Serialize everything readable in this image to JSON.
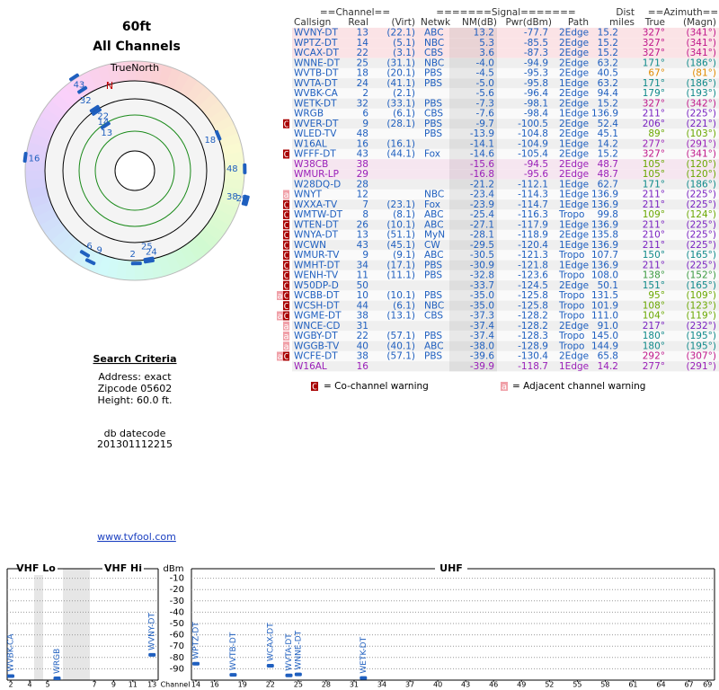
{
  "header": {
    "height_title": "60ft",
    "subtitle": "All Channels"
  },
  "polar": {
    "north_label": "TrueNorth",
    "north_mark": "N",
    "marker_color": "#1f5fbf",
    "markers": [
      {
        "label": "13",
        "az": 327,
        "nm": 13.2
      },
      {
        "label": "14",
        "az": 327,
        "nm": 5.3
      },
      {
        "label": "22",
        "az": 327,
        "nm": 3.6
      },
      {
        "label": "32",
        "az": 327,
        "nm": -7.3
      },
      {
        "label": "43",
        "az": 327,
        "nm": -14.6
      },
      {
        "label": "18",
        "az": 67,
        "nm": -4.5
      },
      {
        "label": "48",
        "az": 89,
        "nm": -13.9
      },
      {
        "label": "38",
        "az": 105,
        "nm": -15.6
      },
      {
        "label": "29",
        "az": 105,
        "nm": -16.8
      },
      {
        "label": "16",
        "az": 277,
        "nm": -14.1
      },
      {
        "label": "6",
        "az": 211,
        "nm": -7.6
      },
      {
        "label": "9",
        "az": 206,
        "nm": -9.7
      },
      {
        "label": "2",
        "az": 179,
        "nm": -5.6
      },
      {
        "label": "25",
        "az": 171,
        "nm": -4.0
      },
      {
        "label": "24",
        "az": 171,
        "nm": -5.0
      }
    ]
  },
  "criteria": {
    "title": "Search Criteria",
    "address": "Address: exact",
    "zipcode": "Zipcode 05602",
    "height": "Height: 60.0 ft.",
    "datecode_label": "db datecode",
    "datecode": "201301112215",
    "link": "www.tvfool.com"
  },
  "table": {
    "headers": {
      "channel": "==Channel==",
      "signal": "=======Signal=======",
      "dist": "Dist",
      "azimuth": "==Azimuth==",
      "callsign": "Callsign",
      "real": "Real",
      "virt": "(Virt)",
      "netwk": "Netwk",
      "nm": "NM(dB)",
      "pwr": "Pwr(dBm)",
      "path": "Path",
      "miles": "miles",
      "az_true": "True",
      "az_magn": "(Magn)"
    },
    "rows": [
      {
        "callsign": "WVNY-DT",
        "real": "13",
        "virt": "(22.1)",
        "netwk": "ABC",
        "nm": "13.2",
        "pwr": "-77.7",
        "path": "2Edge",
        "dist": "15.2",
        "az_true": "327°",
        "az_magn": "(341°)",
        "color": "#1f5fbf",
        "az_color": "#c0168a",
        "bg": "#fbe3e6"
      },
      {
        "callsign": "WPTZ-DT",
        "real": "14",
        "virt": "(5.1)",
        "netwk": "NBC",
        "nm": "5.3",
        "pwr": "-85.5",
        "path": "2Edge",
        "dist": "15.2",
        "az_true": "327°",
        "az_magn": "(341°)",
        "color": "#1f5fbf",
        "az_color": "#c0168a",
        "bg": "#fbe3e6"
      },
      {
        "callsign": "WCAX-DT",
        "real": "22",
        "virt": "(3.1)",
        "netwk": "CBS",
        "nm": "3.6",
        "pwr": "-87.3",
        "path": "2Edge",
        "dist": "15.2",
        "az_true": "327°",
        "az_magn": "(341°)",
        "color": "#1f5fbf",
        "az_color": "#c0168a",
        "bg": "#fbe3e6"
      },
      {
        "callsign": "WNNE-DT",
        "real": "25",
        "virt": "(31.1)",
        "netwk": "NBC",
        "nm": "-4.0",
        "pwr": "-94.9",
        "path": "2Edge",
        "dist": "63.2",
        "az_true": "171°",
        "az_magn": "(186°)",
        "color": "#1f5fbf",
        "az_color": "#108a8a"
      },
      {
        "callsign": "WVTB-DT",
        "real": "18",
        "virt": "(20.1)",
        "netwk": "PBS",
        "nm": "-4.5",
        "pwr": "-95.3",
        "path": "2Edge",
        "dist": "40.5",
        "az_true": "67°",
        "az_magn": "(81°)",
        "color": "#1f5fbf",
        "az_color": "#e08a00"
      },
      {
        "callsign": "WVTA-DT",
        "real": "24",
        "virt": "(41.1)",
        "netwk": "PBS",
        "nm": "-5.0",
        "pwr": "-95.8",
        "path": "1Edge",
        "dist": "63.2",
        "az_true": "171°",
        "az_magn": "(186°)",
        "color": "#1f5fbf",
        "az_color": "#108a8a"
      },
      {
        "callsign": "WVBK-CA",
        "real": "2",
        "virt": "(2.1)",
        "nm": "-5.6",
        "pwr": "-96.4",
        "path": "2Edge",
        "dist": "94.4",
        "az_true": "179°",
        "az_magn": "(193°)",
        "color": "#1f5fbf",
        "az_color": "#108a8a"
      },
      {
        "callsign": "WETK-DT",
        "real": "32",
        "virt": "(33.1)",
        "netwk": "PBS",
        "nm": "-7.3",
        "pwr": "-98.1",
        "path": "2Edge",
        "dist": "15.2",
        "az_true": "327°",
        "az_magn": "(342°)",
        "color": "#1f5fbf",
        "az_color": "#c0168a"
      },
      {
        "callsign": "WRGB",
        "real": "6",
        "virt": "(6.1)",
        "netwk": "CBS",
        "nm": "-7.6",
        "pwr": "-98.4",
        "path": "1Edge",
        "dist": "136.9",
        "az_true": "211°",
        "az_magn": "(225°)",
        "color": "#1f5fbf",
        "az_color": "#7a22c2"
      },
      {
        "flag": "C",
        "callsign": "WVER-DT",
        "real": "9",
        "virt": "(28.1)",
        "netwk": "PBS",
        "nm": "-9.7",
        "pwr": "-100.5",
        "path": "2Edge",
        "dist": "52.4",
        "az_true": "206°",
        "az_magn": "(221°)",
        "color": "#1f5fbf",
        "az_color": "#7a22c2"
      },
      {
        "callsign": "WLED-TV",
        "real": "48",
        "netwk": "PBS",
        "nm": "-13.9",
        "pwr": "-104.8",
        "path": "2Edge",
        "dist": "45.1",
        "az_true": "89°",
        "az_magn": "(103°)",
        "color": "#1f5fbf",
        "az_color": "#6aa800"
      },
      {
        "callsign": "W16AL",
        "real": "16",
        "virt": "(16.1)",
        "nm": "-14.1",
        "pwr": "-104.9",
        "path": "1Edge",
        "dist": "14.2",
        "az_true": "277°",
        "az_magn": "(291°)",
        "color": "#1f5fbf",
        "az_color": "#9a1fb8"
      },
      {
        "flag": "C",
        "callsign": "WFFF-DT",
        "real": "43",
        "virt": "(44.1)",
        "netwk": "Fox",
        "nm": "-14.6",
        "pwr": "-105.4",
        "path": "2Edge",
        "dist": "15.2",
        "az_true": "327°",
        "az_magn": "(341°)",
        "color": "#1f5fbf",
        "az_color": "#c0168a"
      },
      {
        "callsign": "W38CB",
        "real": "38",
        "nm": "-15.6",
        "pwr": "-94.5",
        "path": "2Edge",
        "dist": "48.7",
        "az_true": "105°",
        "az_magn": "(120°)",
        "color": "#9a1fb8",
        "az_color": "#6aa800",
        "bg": "#f6e6f0"
      },
      {
        "callsign": "WMUR-LP",
        "real": "29",
        "nm": "-16.8",
        "pwr": "-95.6",
        "path": "2Edge",
        "dist": "48.7",
        "az_true": "105°",
        "az_magn": "(120°)",
        "color": "#9a1fb8",
        "az_color": "#6aa800",
        "bg": "#f6e6f0"
      },
      {
        "callsign": "W28DQ-D",
        "real": "28",
        "nm": "-21.2",
        "pwr": "-112.1",
        "path": "1Edge",
        "dist": "62.7",
        "az_true": "171°",
        "az_magn": "(186°)",
        "color": "#1f5fbf",
        "az_color": "#108a8a"
      },
      {
        "flag": "a",
        "callsign": "WNYT",
        "real": "12",
        "netwk": "NBC",
        "nm": "-23.4",
        "pwr": "-114.3",
        "path": "1Edge",
        "dist": "136.9",
        "az_true": "211°",
        "az_magn": "(225°)",
        "color": "#1f5fbf",
        "az_color": "#7a22c2"
      },
      {
        "flag": "C",
        "callsign": "WXXA-TV",
        "real": "7",
        "virt": "(23.1)",
        "netwk": "Fox",
        "nm": "-23.9",
        "pwr": "-114.7",
        "path": "1Edge",
        "dist": "136.9",
        "az_true": "211°",
        "az_magn": "(225°)",
        "color": "#1f5fbf",
        "az_color": "#7a22c2"
      },
      {
        "flag": "C",
        "callsign": "WMTW-DT",
        "real": "8",
        "virt": "(8.1)",
        "netwk": "ABC",
        "nm": "-25.4",
        "pwr": "-116.3",
        "path": "Tropo",
        "dist": "99.8",
        "az_true": "109°",
        "az_magn": "(124°)",
        "color": "#1f5fbf",
        "az_color": "#6aa800"
      },
      {
        "flag": "C",
        "callsign": "WTEN-DT",
        "real": "26",
        "virt": "(10.1)",
        "netwk": "ABC",
        "nm": "-27.1",
        "pwr": "-117.9",
        "path": "1Edge",
        "dist": "136.9",
        "az_true": "211°",
        "az_magn": "(225°)",
        "color": "#1f5fbf",
        "az_color": "#7a22c2"
      },
      {
        "flag": "C",
        "callsign": "WNYA-DT",
        "real": "13",
        "virt": "(51.1)",
        "netwk": "MyN",
        "nm": "-28.1",
        "pwr": "-118.9",
        "path": "2Edge",
        "dist": "135.8",
        "az_true": "210°",
        "az_magn": "(225°)",
        "color": "#1f5fbf",
        "az_color": "#7a22c2"
      },
      {
        "flag": "C",
        "callsign": "WCWN",
        "real": "43",
        "virt": "(45.1)",
        "netwk": "CW",
        "nm": "-29.5",
        "pwr": "-120.4",
        "path": "1Edge",
        "dist": "136.9",
        "az_true": "211°",
        "az_magn": "(225°)",
        "color": "#1f5fbf",
        "az_color": "#7a22c2"
      },
      {
        "flag": "C",
        "callsign": "WMUR-TV",
        "real": "9",
        "virt": "(9.1)",
        "netwk": "ABC",
        "nm": "-30.5",
        "pwr": "-121.3",
        "path": "Tropo",
        "dist": "107.7",
        "az_true": "150°",
        "az_magn": "(165°)",
        "color": "#1f5fbf",
        "az_color": "#108a8a"
      },
      {
        "flag": "C",
        "callsign": "WMHT-DT",
        "real": "34",
        "virt": "(17.1)",
        "netwk": "PBS",
        "nm": "-30.9",
        "pwr": "-121.8",
        "path": "1Edge",
        "dist": "136.9",
        "az_true": "211°",
        "az_magn": "(225°)",
        "color": "#1f5fbf",
        "az_color": "#7a22c2"
      },
      {
        "flag": "C",
        "callsign": "WENH-TV",
        "real": "11",
        "virt": "(11.1)",
        "netwk": "PBS",
        "nm": "-32.8",
        "pwr": "-123.6",
        "path": "Tropo",
        "dist": "108.0",
        "az_true": "138°",
        "az_magn": "(152°)",
        "color": "#1f5fbf",
        "az_color": "#3a9a40"
      },
      {
        "flag": "C",
        "callsign": "W50DP-D",
        "real": "50",
        "nm": "-33.7",
        "pwr": "-124.5",
        "path": "2Edge",
        "dist": "50.1",
        "az_true": "151°",
        "az_magn": "(165°)",
        "color": "#1f5fbf",
        "az_color": "#108a8a"
      },
      {
        "flag": "aC",
        "callsign": "WCBB-DT",
        "real": "10",
        "virt": "(10.1)",
        "netwk": "PBS",
        "nm": "-35.0",
        "pwr": "-125.8",
        "path": "Tropo",
        "dist": "131.5",
        "az_true": "95°",
        "az_magn": "(109°)",
        "color": "#1f5fbf",
        "az_color": "#6aa800"
      },
      {
        "flag": "C",
        "callsign": "WCSH-DT",
        "real": "44",
        "virt": "(6.1)",
        "netwk": "NBC",
        "nm": "-35.0",
        "pwr": "-125.8",
        "path": "Tropo",
        "dist": "101.9",
        "az_true": "108°",
        "az_magn": "(123°)",
        "color": "#1f5fbf",
        "az_color": "#6aa800"
      },
      {
        "flag": "aC",
        "callsign": "WGME-DT",
        "real": "38",
        "virt": "(13.1)",
        "netwk": "CBS",
        "nm": "-37.3",
        "pwr": "-128.2",
        "path": "Tropo",
        "dist": "111.0",
        "az_true": "104°",
        "az_magn": "(119°)",
        "color": "#1f5fbf",
        "az_color": "#6aa800"
      },
      {
        "flag": "a",
        "callsign": "WNCE-CD",
        "real": "31",
        "nm": "-37.4",
        "pwr": "-128.2",
        "path": "2Edge",
        "dist": "91.0",
        "az_true": "217°",
        "az_magn": "(232°)",
        "color": "#1f5fbf",
        "az_color": "#7a22c2"
      },
      {
        "flag": "a",
        "callsign": "WGBY-DT",
        "real": "22",
        "virt": "(57.1)",
        "netwk": "PBS",
        "nm": "-37.4",
        "pwr": "-128.3",
        "path": "Tropo",
        "dist": "145.0",
        "az_true": "180°",
        "az_magn": "(195°)",
        "color": "#1f5fbf",
        "az_color": "#108a8a"
      },
      {
        "flag": "a",
        "callsign": "WGGB-TV",
        "real": "40",
        "virt": "(40.1)",
        "netwk": "ABC",
        "nm": "-38.0",
        "pwr": "-128.9",
        "path": "Tropo",
        "dist": "144.9",
        "az_true": "180°",
        "az_magn": "(195°)",
        "color": "#1f5fbf",
        "az_color": "#108a8a"
      },
      {
        "flag": "aC",
        "callsign": "WCFE-DT",
        "real": "38",
        "virt": "(57.1)",
        "netwk": "PBS",
        "nm": "-39.6",
        "pwr": "-130.4",
        "path": "2Edge",
        "dist": "65.8",
        "az_true": "292°",
        "az_magn": "(307°)",
        "color": "#1f5fbf",
        "az_color": "#c0168a"
      },
      {
        "callsign": "W16AL",
        "real": "16",
        "nm": "-39.9",
        "pwr": "-118.7",
        "path": "1Edge",
        "dist": "14.2",
        "az_true": "277°",
        "az_magn": "(291°)",
        "color": "#9a1fb8",
        "az_color": "#9a1fb8"
      }
    ]
  },
  "legend": {
    "co_symbol": "C",
    "co_text": "= Co-channel warning",
    "adj_symbol": "a",
    "adj_text": "= Adjacent channel warning",
    "co_color": "#a80000",
    "adj_color": "#f0a0a8"
  },
  "spectrum": {
    "type": "scatter",
    "bands": [
      "VHF Lo",
      "VHF Hi",
      "UHF"
    ],
    "y_label": "dBm",
    "x_label": "Channel",
    "ylim": [
      -100,
      0
    ],
    "yticks": [
      -10,
      -20,
      -30,
      -40,
      -50,
      -60,
      -70,
      -80,
      -90
    ],
    "xticks": [
      2,
      4,
      5,
      7,
      9,
      11,
      13,
      14,
      16,
      19,
      22,
      25,
      28,
      31,
      34,
      37,
      40,
      43,
      46,
      49,
      52,
      55,
      58,
      61,
      64,
      67,
      69
    ],
    "color": "#1f5fbf",
    "grid": true,
    "stations": [
      {
        "callsign": "WVBK-CA",
        "channel": 2,
        "pwr": -96.4
      },
      {
        "callsign": "WRGB",
        "channel": 6,
        "pwr": -98.4
      },
      {
        "callsign": "WVNY-DT",
        "channel": 13,
        "pwr": -77.7
      },
      {
        "callsign": "WPTZ-DT",
        "channel": 14,
        "pwr": -85.5
      },
      {
        "callsign": "WVTB-DT",
        "channel": 18,
        "pwr": -95.3
      },
      {
        "callsign": "WCAX-DT",
        "channel": 22,
        "pwr": -87.3
      },
      {
        "callsign": "WVTA-DT",
        "channel": 24,
        "pwr": -95.8
      },
      {
        "callsign": "WNNE-DT",
        "channel": 25,
        "pwr": -94.9
      },
      {
        "callsign": "WETK-DT",
        "channel": 32,
        "pwr": -98.1
      }
    ]
  }
}
